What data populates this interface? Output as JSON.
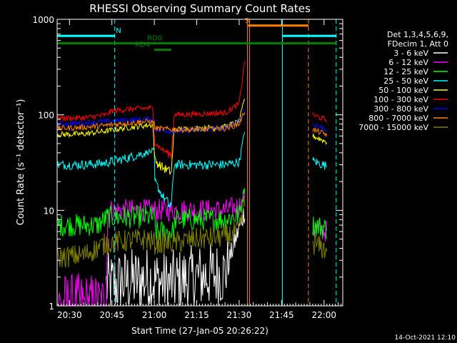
{
  "chart_data": {
    "type": "line",
    "title": "RHESSI Observing Summary Count Rates",
    "xlabel": "Start Time (27-Jan-05 20:26:22)",
    "ylabel": "Count Rate (s⁻¹ detector⁻¹)",
    "y_scale": "log",
    "ylim": [
      1,
      1000
    ],
    "xlim_minutes": [
      -4.37,
      96.63
    ],
    "x_ticks": [
      {
        "t": 0,
        "label": "20:30"
      },
      {
        "t": 15,
        "label": "20:45"
      },
      {
        "t": 30,
        "label": "21:00"
      },
      {
        "t": 45,
        "label": "21:15"
      },
      {
        "t": 60,
        "label": "21:30"
      },
      {
        "t": 75,
        "label": "21:45"
      },
      {
        "t": 90,
        "label": "22:00"
      }
    ],
    "y_ticks": [
      {
        "v": 1,
        "label": "1"
      },
      {
        "v": 10,
        "label": "10"
      },
      {
        "v": 100,
        "label": "100"
      },
      {
        "v": 1000,
        "label": "1000"
      }
    ],
    "legend_header": [
      "Det 1,3,4,5,6,9,",
      "FDecim 1, Att 0"
    ],
    "series": [
      {
        "name": "3 - 6 keV",
        "color": "#ffffff",
        "points": [
          [
            13,
            1.6
          ],
          [
            20,
            1.8
          ],
          [
            28,
            1.9
          ],
          [
            35,
            1.7
          ],
          [
            45,
            2.0
          ],
          [
            55,
            2.2
          ],
          [
            62,
            10
          ]
        ]
      },
      {
        "name": "6 - 12 keV",
        "color": "#ff00ff",
        "points": [
          [
            -4.37,
            1.0
          ],
          [
            3,
            1.0
          ],
          [
            13,
            1.0
          ],
          [
            13.5,
            10
          ],
          [
            20,
            10
          ],
          [
            28,
            10
          ],
          [
            36,
            10
          ],
          [
            45,
            10
          ],
          [
            55,
            10
          ],
          [
            60,
            11
          ],
          [
            62,
            14
          ],
          [
            86,
            6.5
          ],
          [
            91,
            6.0
          ]
        ]
      },
      {
        "name": "12 - 25 keV",
        "color": "#00ff00",
        "points": [
          [
            -4.37,
            7.0
          ],
          [
            5,
            7.0
          ],
          [
            10,
            7.0
          ],
          [
            13.5,
            8.5
          ],
          [
            25,
            8.5
          ],
          [
            30,
            8.5
          ],
          [
            30.5,
            6.0
          ],
          [
            37,
            6.0
          ],
          [
            37.5,
            8.0
          ],
          [
            55,
            8.0
          ],
          [
            60,
            9.0
          ],
          [
            62,
            18
          ],
          [
            86,
            7.0
          ],
          [
            91,
            6.5
          ]
        ]
      },
      {
        "name": "25 - 50 keV",
        "color": "#00ffff",
        "points": [
          [
            -4.37,
            30
          ],
          [
            5,
            30
          ],
          [
            12,
            31
          ],
          [
            20,
            35
          ],
          [
            28,
            41
          ],
          [
            30,
            42
          ],
          [
            30.2,
            20
          ],
          [
            33,
            14
          ],
          [
            36,
            11
          ],
          [
            37,
            30
          ],
          [
            45,
            30
          ],
          [
            55,
            30
          ],
          [
            60,
            32
          ],
          [
            62,
            70
          ],
          [
            86,
            33
          ],
          [
            91,
            29
          ]
        ]
      },
      {
        "name": "50 - 100 keV",
        "color": "#ffff00",
        "points": [
          [
            -4.37,
            62
          ],
          [
            5,
            63
          ],
          [
            12,
            67
          ],
          [
            20,
            73
          ],
          [
            28,
            78
          ],
          [
            29.5,
            78
          ],
          [
            30.2,
            33
          ],
          [
            33,
            28
          ],
          [
            36,
            25
          ],
          [
            37,
            70
          ],
          [
            45,
            72
          ],
          [
            55,
            75
          ],
          [
            60,
            85
          ],
          [
            62,
            150
          ],
          [
            86,
            60
          ],
          [
            91,
            52
          ]
        ]
      },
      {
        "name": "100 - 300 keV",
        "color": "#ff0000",
        "points": [
          [
            -4.37,
            92
          ],
          [
            5,
            93
          ],
          [
            13,
            100
          ],
          [
            15,
            110
          ],
          [
            22,
            115
          ],
          [
            29.5,
            118
          ],
          [
            30.2,
            50
          ],
          [
            33,
            43
          ],
          [
            36,
            38
          ],
          [
            37,
            100
          ],
          [
            45,
            102
          ],
          [
            55,
            105
          ],
          [
            60,
            130
          ],
          [
            62,
            380
          ],
          [
            86,
            100
          ],
          [
            91,
            88
          ]
        ]
      },
      {
        "name": "300 - 800 keV",
        "color": "#0000ff",
        "points": [
          [
            -4.37,
            80
          ],
          [
            5,
            82
          ],
          [
            12,
            85
          ],
          [
            20,
            88
          ],
          [
            28,
            90
          ],
          [
            30,
            88
          ],
          [
            30.2,
            70
          ],
          [
            37,
            67
          ],
          [
            45,
            70
          ],
          [
            55,
            72
          ],
          [
            60,
            85
          ],
          [
            62,
            120
          ],
          [
            86,
            80
          ],
          [
            91,
            70
          ]
        ]
      },
      {
        "name": "800 - 7000 keV",
        "color": "#ff8000",
        "points": [
          [
            -4.37,
            72
          ],
          [
            5,
            74
          ],
          [
            12,
            77
          ],
          [
            20,
            82
          ],
          [
            28,
            85
          ],
          [
            30,
            82
          ],
          [
            30.2,
            72
          ],
          [
            37,
            70
          ],
          [
            45,
            70
          ],
          [
            55,
            72
          ],
          [
            60,
            80
          ],
          [
            62,
            110
          ],
          [
            86,
            70
          ],
          [
            91,
            62
          ]
        ]
      },
      {
        "name": "7000 - 15000 keV",
        "color": "#808000",
        "points": [
          [
            -4.37,
            3.2
          ],
          [
            5,
            3.4
          ],
          [
            13,
            4.5
          ],
          [
            20,
            4.8
          ],
          [
            28,
            5.0
          ],
          [
            30,
            4.5
          ],
          [
            37,
            4.6
          ],
          [
            45,
            5.0
          ],
          [
            55,
            5.3
          ],
          [
            60,
            6.0
          ],
          [
            62,
            12
          ],
          [
            86,
            4.5
          ],
          [
            91,
            3.8
          ]
        ]
      }
    ],
    "flags": [
      {
        "name": "N",
        "color": "#00ffff",
        "y": 670,
        "segments": [
          [
            -4.37,
            16.0
          ],
          [
            75.3,
            94.3
          ]
        ],
        "label_at": 16.4
      },
      {
        "name": "S",
        "color": "#ff8000",
        "y": 860,
        "segments": [
          [
            63.1,
            84.5
          ]
        ],
        "label_at": 62.0
      },
      {
        "name": "RD0",
        "color": "#008000",
        "y": 560,
        "segments": [
          [
            -4.37,
            94.3
          ]
        ],
        "label_at": 27.5
      },
      {
        "name": "RD4",
        "color": "#008000",
        "y": 480,
        "segments": [
          [
            30.0,
            36.0
          ]
        ],
        "label_at": 23.2
      }
    ],
    "vlines": [
      {
        "t": -4.37,
        "color": "#00ffff",
        "style": "solid"
      },
      {
        "t": 16.0,
        "color": "#00ffff",
        "style": "dashed"
      },
      {
        "t": 62.9,
        "color": "#ff8000",
        "style": "solid"
      },
      {
        "t": 63.7,
        "color": "#ff8000",
        "style": "solid"
      },
      {
        "t": 75.3,
        "color": "#00ffff",
        "style": "solid"
      },
      {
        "t": 84.5,
        "color": "#ff8000",
        "style": "dashed"
      },
      {
        "t": 94.3,
        "color": "#00ffff",
        "style": "dashed"
      }
    ],
    "gap": [
      63.5,
      84.5
    ],
    "timestamp": "14-Oct-2021 12:10"
  }
}
